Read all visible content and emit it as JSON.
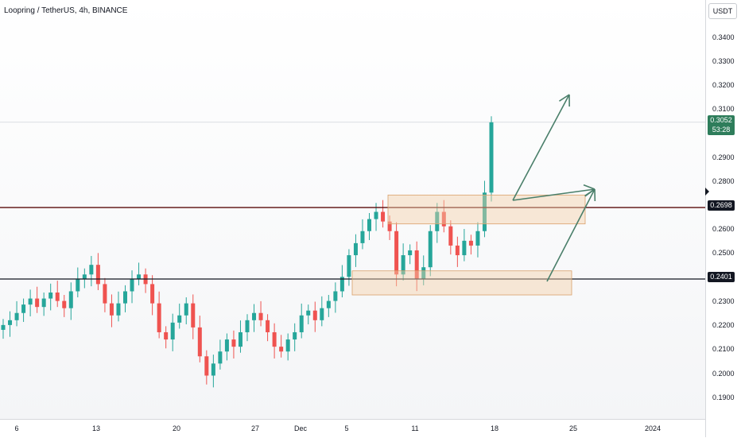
{
  "header": {
    "symbol_title": "Loopring / TetherUS, 4h, BINANCE"
  },
  "price_axis": {
    "currency": "USDT",
    "ticks": [
      "0.3400",
      "0.3300",
      "0.3200",
      "0.3100",
      "0.2900",
      "0.2800",
      "0.2600",
      "0.2500",
      "0.2300",
      "0.2200",
      "0.2100",
      "0.2000",
      "0.1900"
    ]
  },
  "time_axis": {
    "ticks": [
      "6",
      "13",
      "20",
      "27",
      "Dec",
      "5",
      "11",
      "18",
      "25",
      "2024"
    ]
  },
  "last_price": {
    "value": "0.3052",
    "countdown": "53:28"
  },
  "levels": {
    "upper": "0.2698",
    "lower": "0.2401"
  },
  "colors": {
    "up": "#26a69a",
    "down": "#ef5350",
    "zone_fill": "#f5d0a9",
    "zone_stroke": "#d9a06b",
    "arrow": "#4a7f6a",
    "level_upper": "#5a0a0a",
    "level_lower": "#131722"
  },
  "chart_data": {
    "type": "candlestick",
    "title": "Loopring / TetherUS, 4h, BINANCE",
    "y_unit": "USDT",
    "ylim": [
      0.182,
      0.356
    ],
    "x_ticks": [
      "6",
      "13",
      "20",
      "27",
      "Dec",
      "5",
      "11",
      "18",
      "25",
      "2024"
    ],
    "series": [
      {
        "name": "LRC/USDT",
        "close_values": [
          0.221,
          0.223,
          0.226,
          0.2295,
          0.232,
          0.2285,
          0.232,
          0.2345,
          0.231,
          0.228,
          0.235,
          0.24,
          0.242,
          0.246,
          0.238,
          0.23,
          0.225,
          0.23,
          0.235,
          0.24,
          0.242,
          0.238,
          0.23,
          0.218,
          0.215,
          0.222,
          0.225,
          0.23,
          0.22,
          0.208,
          0.2,
          0.205,
          0.21,
          0.215,
          0.212,
          0.218,
          0.223,
          0.226,
          0.223,
          0.218,
          0.212,
          0.21,
          0.215,
          0.218,
          0.225,
          0.227,
          0.223,
          0.228,
          0.231,
          0.235,
          0.241,
          0.25,
          0.255,
          0.26,
          0.265,
          0.268,
          0.264,
          0.26,
          0.242,
          0.25,
          0.252,
          0.24,
          0.245,
          0.26,
          0.268,
          0.262,
          0.254,
          0.25,
          0.256,
          0.254,
          0.26,
          0.276,
          0.3052
        ]
      }
    ],
    "horizontal_levels": [
      0.2698,
      0.2401
    ],
    "zones": [
      {
        "low": 0.263,
        "high": 0.275
      },
      {
        "low": 0.2335,
        "high": 0.2435
      }
    ],
    "last_price": 0.3052,
    "grid": false
  }
}
